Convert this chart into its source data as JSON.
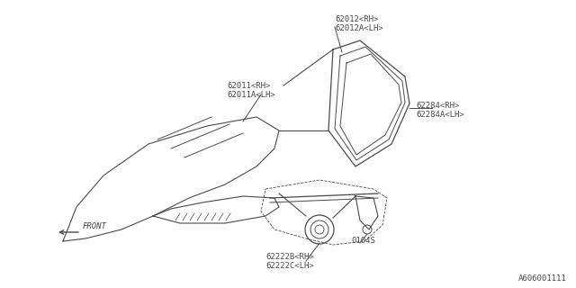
{
  "bg_color": "#ffffff",
  "line_color": "#4a4a4a",
  "text_color": "#4a4a4a",
  "font_size": 6.5,
  "title_bottom": "A606001111",
  "labels": {
    "part1_rh": "62012<RH>",
    "part1_lh": "62012A<LH>",
    "part2_rh": "62284<RH>",
    "part2_lh": "62284A<LH>",
    "part3_rh": "62011<RH>",
    "part3_lh": "62011A<LH>",
    "part4_rh": "62222B<RH>",
    "part4_lh": "62222C<LH>",
    "part5": "0104S",
    "front": "FRONT"
  }
}
